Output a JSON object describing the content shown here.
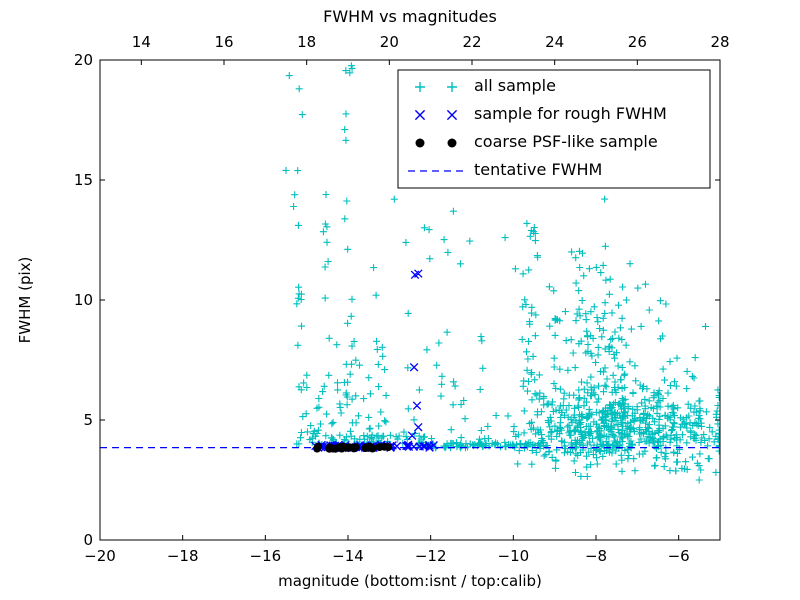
{
  "chart_data": {
    "type": "scatter",
    "title": "FWHM vs magnitudes",
    "xlabel": "magnitude (bottom:isnt / top:calib)",
    "ylabel": "FWHM (pix)",
    "xlim": [
      -20,
      -5
    ],
    "top_xlim": [
      13,
      28
    ],
    "ylim": [
      0,
      20
    ],
    "x_ticks": [
      -20,
      -18,
      -16,
      -14,
      -12,
      -10,
      -8,
      -6
    ],
    "top_x_ticks": [
      14,
      16,
      18,
      20,
      22,
      24,
      26,
      28
    ],
    "y_ticks": [
      0,
      5,
      10,
      15,
      20
    ],
    "grid": false,
    "legend_position": "upper right inside",
    "legend": [
      "all sample",
      "sample for rough FWHM",
      "coarse PSF-like sample",
      "tentative FWHM"
    ],
    "tentative_fwhm_y": 3.85,
    "series": [
      {
        "name": "all sample",
        "type": "scatter",
        "marker": "plus",
        "color": "#00bfbf",
        "clusters": [
          {
            "kind": "gauss",
            "n": 500,
            "cx": -7.7,
            "cy": 4.7,
            "sx": 1.0,
            "sy": 0.85,
            "ymin": 2.4,
            "ymax": 9.5,
            "xmax": -5.05
          },
          {
            "kind": "gauss",
            "n": 150,
            "cx": -7.95,
            "cy": 8.0,
            "sx": 0.75,
            "sy": 2.0,
            "ymin": 4.5,
            "ymax": 14.4
          },
          {
            "kind": "hline",
            "n": 85,
            "x": [
              -12.3,
              -9.2
            ],
            "y": 3.95,
            "jitter": 0.12
          },
          {
            "kind": "hline",
            "n": 30,
            "x": [
              -14.9,
              -12.1
            ],
            "y": 4.2,
            "jitter": 0.18
          },
          {
            "kind": "column",
            "n": 34,
            "x": -9.6,
            "xj": 0.22,
            "y": [
              4.2,
              13.2
            ]
          },
          {
            "kind": "gauss",
            "n": 110,
            "cx": -5.9,
            "cy": 4.4,
            "sx": 0.55,
            "sy": 1.0,
            "ymin": 2.8,
            "ymax": 9.0,
            "xmax": -5.02
          },
          {
            "kind": "powery",
            "n": 42,
            "x": [
              -12.9,
              -10.5
            ],
            "y0": 4.2,
            "dy": 9.8,
            "exp": 2.6
          },
          {
            "kind": "powery",
            "n": 95,
            "x": [
              -15.35,
              -13.05
            ],
            "y0": 3.95,
            "dy": 4.6,
            "exp": 2.2
          },
          {
            "kind": "column",
            "n": 13,
            "x": -15.22,
            "xj": 0.12,
            "y": [
              8.0,
              19.0
            ]
          },
          {
            "kind": "column",
            "n": 16,
            "x": -14.0,
            "xj": 0.1,
            "y": [
              4.6,
              19.8
            ]
          },
          {
            "kind": "column",
            "n": 8,
            "x": -14.55,
            "xj": 0.09,
            "y": [
              9.0,
              14.5
            ]
          },
          {
            "kind": "points",
            "pts": [
              [
                -13.32,
                10.2
              ],
              [
                -13.38,
                11.35
              ],
              [
                -15.5,
                15.4
              ],
              [
                -15.42,
                19.35
              ],
              [
                -15.18,
                18.8
              ],
              [
                -13.9,
                19.65
              ],
              [
                -14.08,
                17.1
              ],
              [
                -12.88,
                14.2
              ],
              [
                -12.6,
                12.4
              ],
              [
                -11.45,
                13.7
              ],
              [
                -10.2,
                12.6
              ],
              [
                -9.95,
                11.3
              ],
              [
                -5.35,
                8.9
              ],
              [
                -5.6,
                7.6
              ]
            ]
          }
        ]
      },
      {
        "name": "sample for rough FWHM",
        "type": "scatter",
        "marker": "x",
        "color": "#0000ff",
        "clusters": [
          {
            "kind": "hline",
            "n": 60,
            "x": [
              -14.85,
              -11.9
            ],
            "y": 3.9,
            "jitter": 0.07
          },
          {
            "kind": "points",
            "pts": [
              [
                -12.38,
                11.05
              ],
              [
                -12.3,
                11.1
              ],
              [
                -12.4,
                7.2
              ],
              [
                -12.33,
                5.6
              ],
              [
                -12.3,
                4.7
              ],
              [
                -12.45,
                4.35
              ]
            ]
          }
        ]
      },
      {
        "name": "coarse PSF-like sample",
        "type": "scatter",
        "marker": "dot",
        "color": "#000000",
        "clusters": [
          {
            "kind": "hline",
            "n": 26,
            "x": [
              -14.78,
              -12.95
            ],
            "y": 3.85,
            "jitter": 0.05
          }
        ]
      },
      {
        "name": "tentative FWHM",
        "type": "line",
        "style": "dashed",
        "color": "#0000ff",
        "y": 3.85
      }
    ]
  },
  "colors": {
    "frame": "#000000",
    "background": "#ffffff",
    "all_sample": "#00bfbf",
    "rough_fwhm": "#0000ff",
    "psf_sample": "#000000",
    "tentative_line": "#0000ff"
  }
}
